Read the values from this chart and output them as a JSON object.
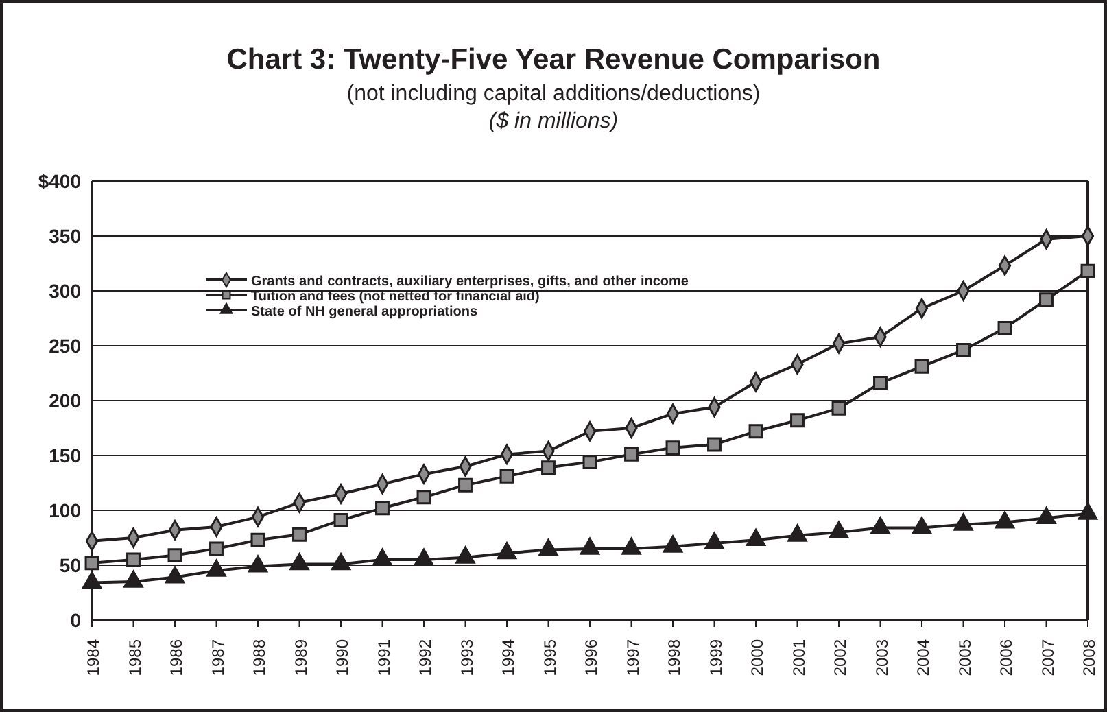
{
  "chart_data": {
    "type": "line",
    "title": "Chart 3:  Twenty-Five Year Revenue Comparison",
    "subtitle": "(not including capital additions/deductions)",
    "ylabel": "($ in millions)",
    "categories": [
      "1984",
      "1985",
      "1986",
      "1987",
      "1988",
      "1989",
      "1990",
      "1991",
      "1992",
      "1993",
      "1994",
      "1995",
      "1996",
      "1997",
      "1998",
      "1999",
      "2000",
      "2001",
      "2002",
      "2003",
      "2004",
      "2005",
      "2006",
      "2007",
      "2008"
    ],
    "series": [
      {
        "name": "Grants and contracts, auxiliary enterprises, gifts, and other income",
        "color": "#231f20",
        "marker": "diamond",
        "values": [
          72,
          75,
          82,
          85,
          94,
          107,
          115,
          124,
          133,
          140,
          151,
          154,
          172,
          175,
          188,
          194,
          217,
          233,
          252,
          258,
          284,
          300,
          323,
          347,
          350
        ]
      },
      {
        "name": "Tuition and fees (not netted for financial aid)",
        "color": "#231f20",
        "marker": "square",
        "values": [
          52,
          55,
          59,
          65,
          73,
          78,
          91,
          102,
          112,
          123,
          131,
          139,
          144,
          151,
          157,
          160,
          172,
          182,
          193,
          216,
          231,
          246,
          266,
          292,
          318
        ]
      },
      {
        "name": "State of NH general appropriations",
        "color": "#231f20",
        "marker": "triangle",
        "values": [
          34,
          35,
          39,
          45,
          49,
          51,
          51,
          55,
          55,
          57,
          61,
          64,
          65,
          65,
          67,
          70,
          73,
          77,
          80,
          84,
          84,
          87,
          89,
          93,
          97
        ]
      }
    ],
    "ylim": [
      0,
      400
    ],
    "yticks": [
      0,
      50,
      100,
      150,
      200,
      250,
      300,
      350,
      {
        "value": 400,
        "label": "$400"
      }
    ],
    "grid": "y",
    "legend": "top left",
    "line_style": "solid"
  }
}
